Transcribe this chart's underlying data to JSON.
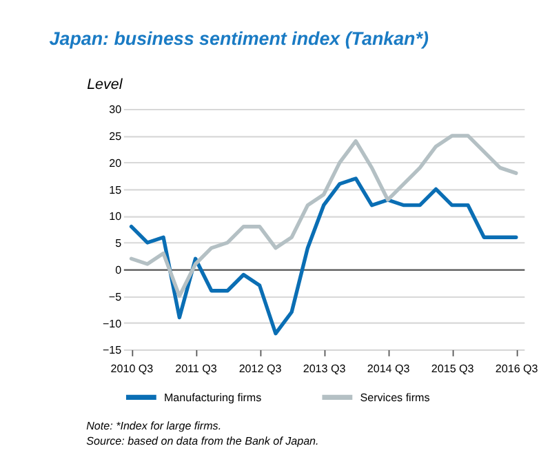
{
  "chart_data": {
    "type": "line",
    "title": "Japan: business sentiment index (Tankan*)",
    "ylabel": "Level",
    "categories": [
      "2010 Q3",
      null,
      null,
      null,
      "2011 Q3",
      null,
      null,
      null,
      "2012 Q3",
      null,
      null,
      null,
      "2013 Q3",
      null,
      null,
      null,
      "2014 Q3",
      null,
      null,
      null,
      "2015 Q3",
      null,
      null,
      null,
      "2016 Q3"
    ],
    "series": [
      {
        "name": "Manufacturing firms",
        "color": "#0a6eb4",
        "values": [
          8,
          5,
          6,
          -9,
          2,
          -4,
          -4,
          -1,
          -3,
          -12,
          -8,
          4,
          12,
          16,
          17,
          12,
          13,
          12,
          12,
          15,
          12,
          12,
          6,
          6,
          6
        ]
      },
      {
        "name": "Services firms",
        "color": "#b4c0c4",
        "values": [
          2,
          1,
          3,
          -5,
          1,
          4,
          5,
          8,
          8,
          4,
          6,
          12,
          14,
          20,
          24,
          19,
          13,
          16,
          19,
          23,
          25,
          25,
          22,
          19,
          18
        ]
      }
    ],
    "ylim": [
      -15,
      30
    ],
    "yticks": [
      -15,
      -10,
      -5,
      0,
      5,
      10,
      15,
      20,
      25,
      30
    ],
    "grid": "y",
    "legend": "bottom",
    "line_style": "solid",
    "marker": "none",
    "annotations": [
      "Note: *Index for large firms.",
      "Source: based on data from the Bank of Japan."
    ]
  }
}
